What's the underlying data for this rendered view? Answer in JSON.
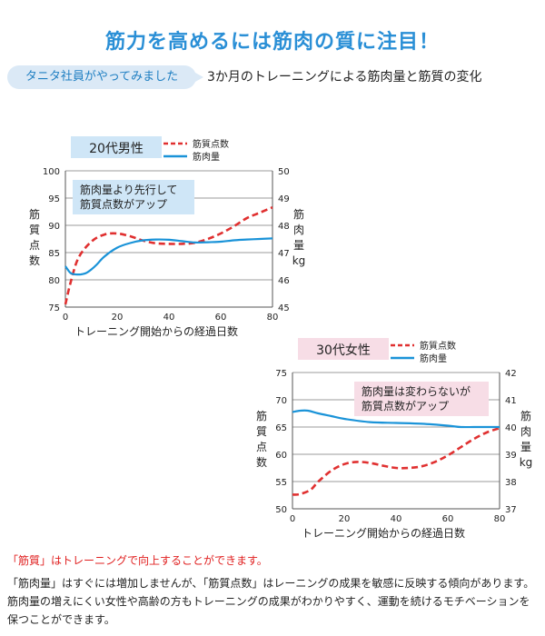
{
  "title": "筋力を高めるには筋肉の質に注目！",
  "badge": "タニタ社員がやってみました",
  "subtitle": "3か月のトレーニングによる筋肉量と筋質の変化",
  "chart_data": [
    {
      "type": "line",
      "group_label": "20代男性",
      "annotation": "筋肉量より先行して\n筋質点数がアップ",
      "xlabel": "トレーニング開始からの経過日数",
      "ylabel_left": "筋\n質\n点\n数",
      "ylabel_right": "筋\n肉\n量\nkg",
      "xlim": [
        0,
        80
      ],
      "xticks": [
        0,
        20,
        40,
        60,
        80
      ],
      "ylim_left": [
        75,
        100
      ],
      "yticks_left": [
        75,
        80,
        85,
        90,
        95,
        100
      ],
      "ylim_right": [
        45,
        50
      ],
      "yticks_right": [
        45,
        46,
        47,
        48,
        49,
        50
      ],
      "grid": true,
      "legend_position": "top-right",
      "series": [
        {
          "name": "筋質点数",
          "axis": "left",
          "style": "dashed",
          "color": "#e03030",
          "x": [
            0,
            2,
            5,
            10,
            15,
            20,
            25,
            30,
            35,
            40,
            45,
            50,
            55,
            60,
            65,
            70,
            75,
            80
          ],
          "y": [
            75.5,
            79.5,
            84,
            87,
            88.3,
            88.5,
            88,
            87.2,
            86.7,
            86.6,
            86.6,
            86.8,
            87.5,
            88.5,
            89.8,
            91.3,
            92.3,
            93.3
          ]
        },
        {
          "name": "筋肉量",
          "axis": "right",
          "style": "solid",
          "color": "#1a93d8",
          "x": [
            0,
            2,
            4,
            6,
            8,
            10,
            12,
            15,
            20,
            25,
            30,
            35,
            40,
            45,
            50,
            55,
            60,
            65,
            70,
            75,
            80
          ],
          "y": [
            46.5,
            46.25,
            46.2,
            46.2,
            46.25,
            46.38,
            46.55,
            46.85,
            47.18,
            47.35,
            47.45,
            47.48,
            47.47,
            47.42,
            47.37,
            47.38,
            47.4,
            47.45,
            47.48,
            47.5,
            47.52
          ]
        }
      ]
    },
    {
      "type": "line",
      "group_label": "30代女性",
      "annotation": "筋肉量は変わらないが\n筋質点数がアップ",
      "xlabel": "トレーニング開始からの経過日数",
      "ylabel_left": "筋\n質\n点\n数",
      "ylabel_right": "筋\n肉\n量\nkg",
      "xlim": [
        0,
        80
      ],
      "xticks": [
        0,
        20,
        40,
        60,
        80
      ],
      "ylim_left": [
        50,
        75
      ],
      "yticks_left": [
        50,
        55,
        60,
        65,
        70,
        75
      ],
      "ylim_right": [
        37,
        42
      ],
      "yticks_right": [
        37,
        38,
        39,
        40,
        41,
        42
      ],
      "grid": true,
      "legend_position": "top-right",
      "series": [
        {
          "name": "筋質点数",
          "axis": "left",
          "style": "dashed",
          "color": "#e03030",
          "x": [
            0,
            3,
            7,
            10,
            15,
            20,
            25,
            30,
            35,
            40,
            45,
            50,
            55,
            60,
            65,
            70,
            75,
            80
          ],
          "y": [
            52.6,
            52.7,
            53.5,
            55,
            57,
            58.2,
            58.6,
            58.4,
            57.9,
            57.5,
            57.5,
            57.8,
            58.6,
            59.8,
            61.3,
            62.8,
            64.0,
            64.8
          ]
        },
        {
          "name": "筋肉量",
          "axis": "right",
          "style": "solid",
          "color": "#1a93d8",
          "x": [
            0,
            3,
            6,
            10,
            15,
            20,
            30,
            40,
            50,
            60,
            65,
            70,
            75,
            80
          ],
          "y": [
            40.55,
            40.6,
            40.6,
            40.5,
            40.4,
            40.3,
            40.18,
            40.15,
            40.12,
            40.05,
            40.0,
            40.0,
            40.0,
            40.0
          ]
        }
      ]
    }
  ],
  "footnote_highlight": "「筋質」はトレーニングで向上することができます。",
  "footnote_body": "「筋肉量」はすぐには増加しませんが、「筋質点数」はレーニングの成果を敏感に反映する傾向があります。筋肉量の増えにくい女性や高齢の方もトレーニングの成果がわかりやすく、運動を続けるモチベーションを保つことができます。"
}
